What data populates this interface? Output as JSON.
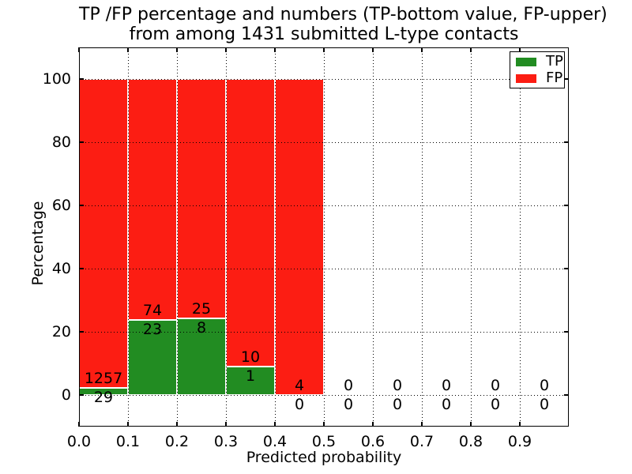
{
  "title": {
    "line1": "TP /FP percentage and numbers (TP-bottom value, FP-upper)",
    "line2": "from among 1431 submitted L-type contacts"
  },
  "axes": {
    "xlabel": "Predicted probability",
    "ylabel": "Percentage",
    "xlim": [
      0.0,
      1.0
    ],
    "ylim": [
      -10,
      110
    ],
    "x_ticks": [
      0.0,
      0.1,
      0.2,
      0.3,
      0.4,
      0.5,
      0.6,
      0.7,
      0.8,
      0.9
    ],
    "x_tick_labels": [
      "0.0",
      "0.1",
      "0.2",
      "0.3",
      "0.4",
      "0.5",
      "0.6",
      "0.7",
      "0.8",
      "0.9"
    ],
    "y_ticks": [
      0,
      20,
      40,
      60,
      80,
      100
    ],
    "y_tick_labels": [
      "0",
      "20",
      "40",
      "60",
      "80",
      "100"
    ],
    "grid_style": "dotted"
  },
  "legend": {
    "items": [
      {
        "label": "TP",
        "color": "#228c22"
      },
      {
        "label": "FP",
        "color": "#fc1d13"
      }
    ]
  },
  "chart_data": {
    "type": "bar",
    "stacked": true,
    "normalization": "each non-empty bar scaled to 100%",
    "title": "TP /FP percentage and numbers (TP-bottom value, FP-upper) from among 1431 submitted L-type contacts",
    "xlabel": "Predicted probability",
    "ylabel": "Percentage",
    "xlim": [
      0.0,
      1.0
    ],
    "ylim": [
      -10,
      110
    ],
    "grid": "on",
    "legend_position": "upper right",
    "bin_width": 0.1,
    "bin_starts": [
      0.0,
      0.1,
      0.2,
      0.3,
      0.4,
      0.5,
      0.6,
      0.7,
      0.8,
      0.9
    ],
    "categories": [
      "0.0-0.1",
      "0.1-0.2",
      "0.2-0.3",
      "0.3-0.4",
      "0.4-0.5",
      "0.5-0.6",
      "0.6-0.7",
      "0.7-0.8",
      "0.8-0.9",
      "0.9-1.0"
    ],
    "series": [
      {
        "name": "TP",
        "color": "#228c22",
        "counts": [
          29,
          23,
          8,
          1,
          0,
          0,
          0,
          0,
          0,
          0
        ]
      },
      {
        "name": "FP",
        "color": "#fc1d13",
        "counts": [
          1257,
          74,
          25,
          10,
          4,
          0,
          0,
          0,
          0,
          0
        ]
      }
    ],
    "tp_percent_of_bar": [
      2.26,
      23.71,
      24.24,
      9.09,
      0,
      0,
      0,
      0,
      0,
      0
    ],
    "total_contacts": 1431,
    "bar_edge_color": "#ffffff"
  },
  "colors": {
    "tp": "#228c22",
    "fp": "#fc1d13",
    "grid": "#000000",
    "spine": "#000000",
    "background": "#ffffff"
  }
}
